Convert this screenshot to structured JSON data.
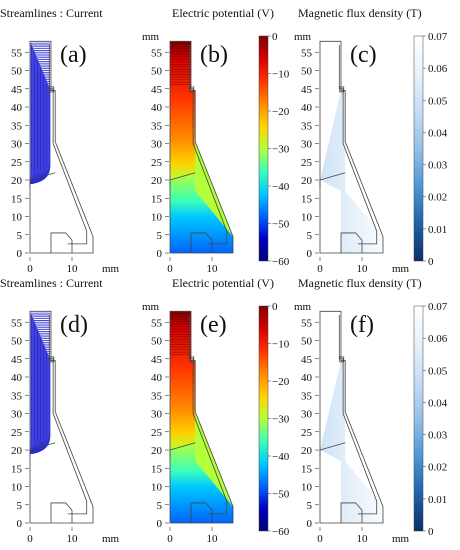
{
  "colors": {
    "current_lines": "#2b2bd6",
    "geometry": "#444444",
    "potential_scale": [
      "#800000",
      "#d40000",
      "#ff3300",
      "#ff8800",
      "#ffd200",
      "#b4ff3a",
      "#3dffb8",
      "#00c8ff",
      "#0064ff",
      "#0000c0",
      "#00007a"
    ],
    "flux_scale": [
      "#ffffff",
      "#e8f2fb",
      "#c6def5",
      "#93c2ea",
      "#4e98d4",
      "#1f62ab",
      "#0b2f63"
    ]
  },
  "rows": [
    {
      "panels": [
        {
          "title": "Streamlines : Current",
          "label": "(a)",
          "kind": "streamlines"
        },
        {
          "title": "Electric potential (V)",
          "label": "(b)",
          "kind": "potential"
        },
        {
          "title": "Magnetic flux density (T)",
          "label": "(c)",
          "kind": "flux"
        }
      ],
      "potential_colorbar": {
        "ticks": [
          "0",
          "−10",
          "−20",
          "−30",
          "−40",
          "−50",
          "−60"
        ]
      },
      "flux_colorbar": {
        "ticks": [
          "0.07",
          "0.06",
          "0.05",
          "0.04",
          "0.03",
          "0.02",
          "0.01",
          "0"
        ]
      }
    },
    {
      "panels": [
        {
          "title": "Streamlines : Current",
          "label": "(d)",
          "kind": "streamlines"
        },
        {
          "title": "Electric potential (V)",
          "label": "(e)",
          "kind": "potential"
        },
        {
          "title": "Magnetic flux density (T)",
          "label": "(f)",
          "kind": "flux"
        }
      ],
      "potential_colorbar": {
        "ticks": [
          "0",
          "−10",
          "−20",
          "−30",
          "−40",
          "−50",
          "−60"
        ]
      },
      "flux_colorbar": {
        "ticks": [
          "0.07",
          "0.06",
          "0.05",
          "0.04",
          "0.03",
          "0.02",
          "0.01",
          "0"
        ]
      }
    }
  ],
  "axes": {
    "y_ticks": [
      "0",
      "5",
      "10",
      "15",
      "20",
      "25",
      "30",
      "35",
      "40",
      "45",
      "50",
      "55"
    ],
    "y_unit": "mm",
    "x_ticks": [
      "0",
      "10"
    ],
    "x_unit": "mm"
  }
}
